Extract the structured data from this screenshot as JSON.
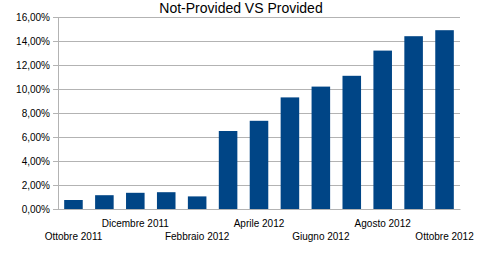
{
  "chart_data": {
    "type": "bar",
    "title": "Not-Provided VS Provided",
    "categories": [
      "Ottobre 2011",
      null,
      "Dicembre 2011",
      null,
      "Febbraio 2012",
      null,
      "Aprile 2012",
      null,
      "Giugno 2012",
      null,
      "Agosto 2012",
      null,
      "Ottobre 2012"
    ],
    "values": [
      0.75,
      1.15,
      1.35,
      1.4,
      1.05,
      6.5,
      7.35,
      9.3,
      10.2,
      11.1,
      13.2,
      14.4,
      14.9
    ],
    "color": "#004586",
    "ylim": [
      0,
      16
    ],
    "yticks": [
      {
        "value": 0,
        "label": "0,00%"
      },
      {
        "value": 2,
        "label": "2,00%"
      },
      {
        "value": 4,
        "label": "4,00%"
      },
      {
        "value": 6,
        "label": "6,00%"
      },
      {
        "value": 8,
        "label": "8,00%"
      },
      {
        "value": 10,
        "label": "10,00%"
      },
      {
        "value": 12,
        "label": "12,00%"
      },
      {
        "value": 14,
        "label": "14,00%"
      },
      {
        "value": 16,
        "label": "16,00%"
      }
    ],
    "grid": true
  }
}
